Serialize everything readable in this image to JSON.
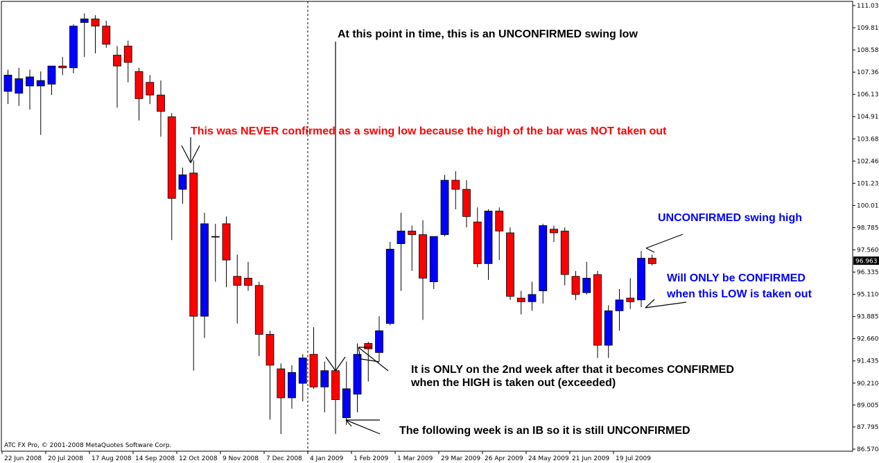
{
  "chart_data": {
    "type": "candlestick",
    "timeframe": "weekly",
    "ylim": [
      86.57,
      111.035
    ],
    "y_ticks": [
      "111.035",
      "109.810",
      "108.585",
      "107.360",
      "106.135",
      "104.910",
      "103.685",
      "102.460",
      "101.235",
      "100.010",
      "98.785",
      "97.560",
      "96.335",
      "95.110",
      "93.885",
      "92.660",
      "91.435",
      "90.210",
      "89.005",
      "87.795",
      "86.570"
    ],
    "current_price": "96.963",
    "x_labels": [
      {
        "i": 0,
        "label": "22 Jun 2008"
      },
      {
        "i": 4,
        "label": "20 Jul 2008"
      },
      {
        "i": 8,
        "label": "17 Aug 2008"
      },
      {
        "i": 12,
        "label": "14 Sep 2008"
      },
      {
        "i": 16,
        "label": "12 Oct 2008"
      },
      {
        "i": 20,
        "label": "9 Nov 2008"
      },
      {
        "i": 24,
        "label": "7 Dec 2008"
      },
      {
        "i": 28,
        "label": "4 Jan 2009"
      },
      {
        "i": 32,
        "label": "1 Feb 2009"
      },
      {
        "i": 36,
        "label": "1 Mar 2009"
      },
      {
        "i": 40,
        "label": "29 Mar 2009"
      },
      {
        "i": 44,
        "label": "26 Apr 2009"
      },
      {
        "i": 48,
        "label": "24 May 2009"
      },
      {
        "i": 52,
        "label": "21 Jun 2009"
      },
      {
        "i": 56,
        "label": "19 Jul 2009"
      }
    ],
    "bars": [
      {
        "o": 106.3,
        "h": 107.5,
        "l": 105.6,
        "c": 107.2
      },
      {
        "o": 106.2,
        "h": 107.6,
        "l": 105.5,
        "c": 107.0
      },
      {
        "o": 106.6,
        "h": 107.5,
        "l": 105.3,
        "c": 107.1
      },
      {
        "o": 106.6,
        "h": 107.4,
        "l": 103.9,
        "c": 106.9
      },
      {
        "o": 106.7,
        "h": 107.7,
        "l": 106.1,
        "c": 107.7
      },
      {
        "o": 107.7,
        "h": 108.2,
        "l": 107.2,
        "c": 107.6
      },
      {
        "o": 107.6,
        "h": 110.0,
        "l": 107.3,
        "c": 109.9
      },
      {
        "o": 110.1,
        "h": 110.6,
        "l": 108.2,
        "c": 110.3
      },
      {
        "o": 110.3,
        "h": 110.5,
        "l": 108.4,
        "c": 109.9
      },
      {
        "o": 109.9,
        "h": 110.2,
        "l": 108.7,
        "c": 108.9
      },
      {
        "o": 108.3,
        "h": 108.8,
        "l": 105.4,
        "c": 107.7
      },
      {
        "o": 108.8,
        "h": 109.1,
        "l": 106.8,
        "c": 107.9
      },
      {
        "o": 107.4,
        "h": 107.6,
        "l": 104.7,
        "c": 105.9
      },
      {
        "o": 106.8,
        "h": 107.2,
        "l": 105.6,
        "c": 106.1
      },
      {
        "o": 106.1,
        "h": 106.9,
        "l": 103.8,
        "c": 105.2
      },
      {
        "o": 104.9,
        "h": 105.1,
        "l": 98.1,
        "c": 100.4
      },
      {
        "o": 100.9,
        "h": 102.1,
        "l": 100.1,
        "c": 101.7
      },
      {
        "o": 101.8,
        "h": 102.5,
        "l": 90.9,
        "c": 93.9
      },
      {
        "o": 93.9,
        "h": 99.6,
        "l": 92.7,
        "c": 99.0
      },
      {
        "o": 98.3,
        "h": 99.0,
        "l": 95.8,
        "c": 98.3
      },
      {
        "o": 99.0,
        "h": 99.4,
        "l": 95.5,
        "c": 97.0
      },
      {
        "o": 96.1,
        "h": 97.3,
        "l": 93.5,
        "c": 95.6
      },
      {
        "o": 96.0,
        "h": 96.9,
        "l": 95.3,
        "c": 95.6
      },
      {
        "o": 95.6,
        "h": 95.8,
        "l": 91.7,
        "c": 92.9
      },
      {
        "o": 92.9,
        "h": 93.1,
        "l": 88.2,
        "c": 91.2
      },
      {
        "o": 91.0,
        "h": 91.3,
        "l": 87.4,
        "c": 89.4
      },
      {
        "o": 89.4,
        "h": 91.2,
        "l": 88.8,
        "c": 90.8
      },
      {
        "o": 90.2,
        "h": 91.8,
        "l": 89.2,
        "c": 91.6
      },
      {
        "o": 91.8,
        "h": 93.3,
        "l": 89.9,
        "c": 90.0
      },
      {
        "o": 90.0,
        "h": 91.4,
        "l": 88.6,
        "c": 90.9
      },
      {
        "o": 90.9,
        "h": 92.2,
        "l": 87.4,
        "c": 89.3
      },
      {
        "o": 88.3,
        "h": 91.4,
        "l": 87.9,
        "c": 89.9
      },
      {
        "o": 89.6,
        "h": 92.4,
        "l": 88.6,
        "c": 91.8
      },
      {
        "o": 92.4,
        "h": 92.5,
        "l": 90.3,
        "c": 92.1
      },
      {
        "o": 91.9,
        "h": 93.9,
        "l": 91.4,
        "c": 93.1
      },
      {
        "o": 93.5,
        "h": 98.0,
        "l": 93.4,
        "c": 97.6
      },
      {
        "o": 97.9,
        "h": 99.6,
        "l": 95.3,
        "c": 98.6
      },
      {
        "o": 98.6,
        "h": 98.9,
        "l": 96.4,
        "c": 98.4
      },
      {
        "o": 98.4,
        "h": 99.2,
        "l": 93.7,
        "c": 96.0
      },
      {
        "o": 95.8,
        "h": 98.2,
        "l": 95.4,
        "c": 98.3
      },
      {
        "o": 98.4,
        "h": 101.7,
        "l": 98.3,
        "c": 101.4
      },
      {
        "o": 101.4,
        "h": 101.9,
        "l": 99.8,
        "c": 100.9
      },
      {
        "o": 100.9,
        "h": 101.4,
        "l": 98.8,
        "c": 99.4
      },
      {
        "o": 99.1,
        "h": 99.9,
        "l": 96.6,
        "c": 96.8
      },
      {
        "o": 96.8,
        "h": 99.8,
        "l": 95.9,
        "c": 99.7
      },
      {
        "o": 99.7,
        "h": 99.9,
        "l": 97.0,
        "c": 98.6
      },
      {
        "o": 98.5,
        "h": 98.8,
        "l": 94.8,
        "c": 95.0
      },
      {
        "o": 94.9,
        "h": 95.3,
        "l": 94.0,
        "c": 94.7
      },
      {
        "o": 94.7,
        "h": 95.8,
        "l": 94.2,
        "c": 95.1
      },
      {
        "o": 95.3,
        "h": 99.0,
        "l": 94.6,
        "c": 98.9
      },
      {
        "o": 98.7,
        "h": 98.9,
        "l": 98.0,
        "c": 98.5
      },
      {
        "o": 98.6,
        "h": 98.8,
        "l": 95.6,
        "c": 96.2
      },
      {
        "o": 96.1,
        "h": 96.4,
        "l": 94.8,
        "c": 95.1
      },
      {
        "o": 95.2,
        "h": 96.9,
        "l": 95.1,
        "c": 96.0
      },
      {
        "o": 96.2,
        "h": 96.4,
        "l": 91.6,
        "c": 92.3
      },
      {
        "o": 92.3,
        "h": 94.5,
        "l": 91.6,
        "c": 94.2
      },
      {
        "o": 94.2,
        "h": 95.4,
        "l": 93.1,
        "c": 94.8
      },
      {
        "o": 94.9,
        "h": 96.0,
        "l": 94.3,
        "c": 94.7
      },
      {
        "o": 94.8,
        "h": 97.5,
        "l": 94.4,
        "c": 97.1
      },
      {
        "o": 97.1,
        "h": 97.3,
        "l": 96.7,
        "c": 96.8
      }
    ],
    "colors": {
      "up": "#0000ff",
      "down": "#ff0000",
      "background": "#ffffff",
      "axis": "#000000",
      "arrows": "#000000"
    },
    "vline_index": 28,
    "annotations": [
      {
        "text": "At this point in time, this is an UNCONFIRMED swing low",
        "color": "#000000",
        "x": 487,
        "y": 54
      },
      {
        "text": "This was NEVER confirmed as a swing low because the high of the bar was NOT taken out",
        "color": "#ff0000",
        "x": 275,
        "y": 194
      },
      {
        "text": "UNCONFIRMED swing high",
        "color": "#0000ff",
        "x": 949,
        "y": 319
      },
      {
        "text": "Will ONLY be CONFIRMED",
        "color": "#0000ff",
        "x": 962,
        "y": 406
      },
      {
        "text": "when this LOW is taken out",
        "color": "#0000ff",
        "x": 962,
        "y": 429
      },
      {
        "text": "It is ONLY on the 2nd week after that it becomes CONFIRMED",
        "color": "#000000",
        "x": 593,
        "y": 538
      },
      {
        "text": "when the HIGH is taken out (exceeded)",
        "color": "#000000",
        "x": 593,
        "y": 557
      },
      {
        "text": "The following week is an IB so it is still UNCONFIRMED",
        "color": "#000000",
        "x": 576,
        "y": 626
      }
    ],
    "copyright": "ATC FX Pro, © 2001-2008 MetaQuotes Software Corp."
  }
}
